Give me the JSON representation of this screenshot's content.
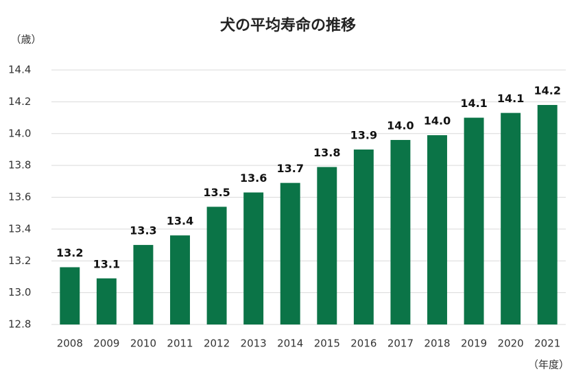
{
  "chart_data": {
    "type": "bar",
    "title": "犬の平均寿命の推移",
    "y_label": "（歳）",
    "x_label": "（年度）",
    "categories": [
      "2008",
      "2009",
      "2010",
      "2011",
      "2012",
      "2013",
      "2014",
      "2015",
      "2016",
      "2017",
      "2018",
      "2019",
      "2020",
      "2021"
    ],
    "values": [
      13.16,
      13.09,
      13.3,
      13.36,
      13.54,
      13.63,
      13.69,
      13.79,
      13.9,
      13.96,
      13.99,
      14.1,
      14.13,
      14.18
    ],
    "value_labels": [
      "13.2",
      "13.1",
      "13.3",
      "13.4",
      "13.5",
      "13.6",
      "13.7",
      "13.8",
      "13.9",
      "14.0",
      "14.0",
      "14.1",
      "14.1",
      "14.2"
    ],
    "color": "#0b7447",
    "ylim": [
      12.8,
      14.4
    ],
    "yticks": [
      12.8,
      {
        "value": 13.0,
        "label": "13.0"
      },
      13.2,
      13.4,
      13.6,
      13.8,
      {
        "value": 14.0,
        "label": "14.0"
      },
      14.2,
      14.4
    ],
    "grid": true
  }
}
